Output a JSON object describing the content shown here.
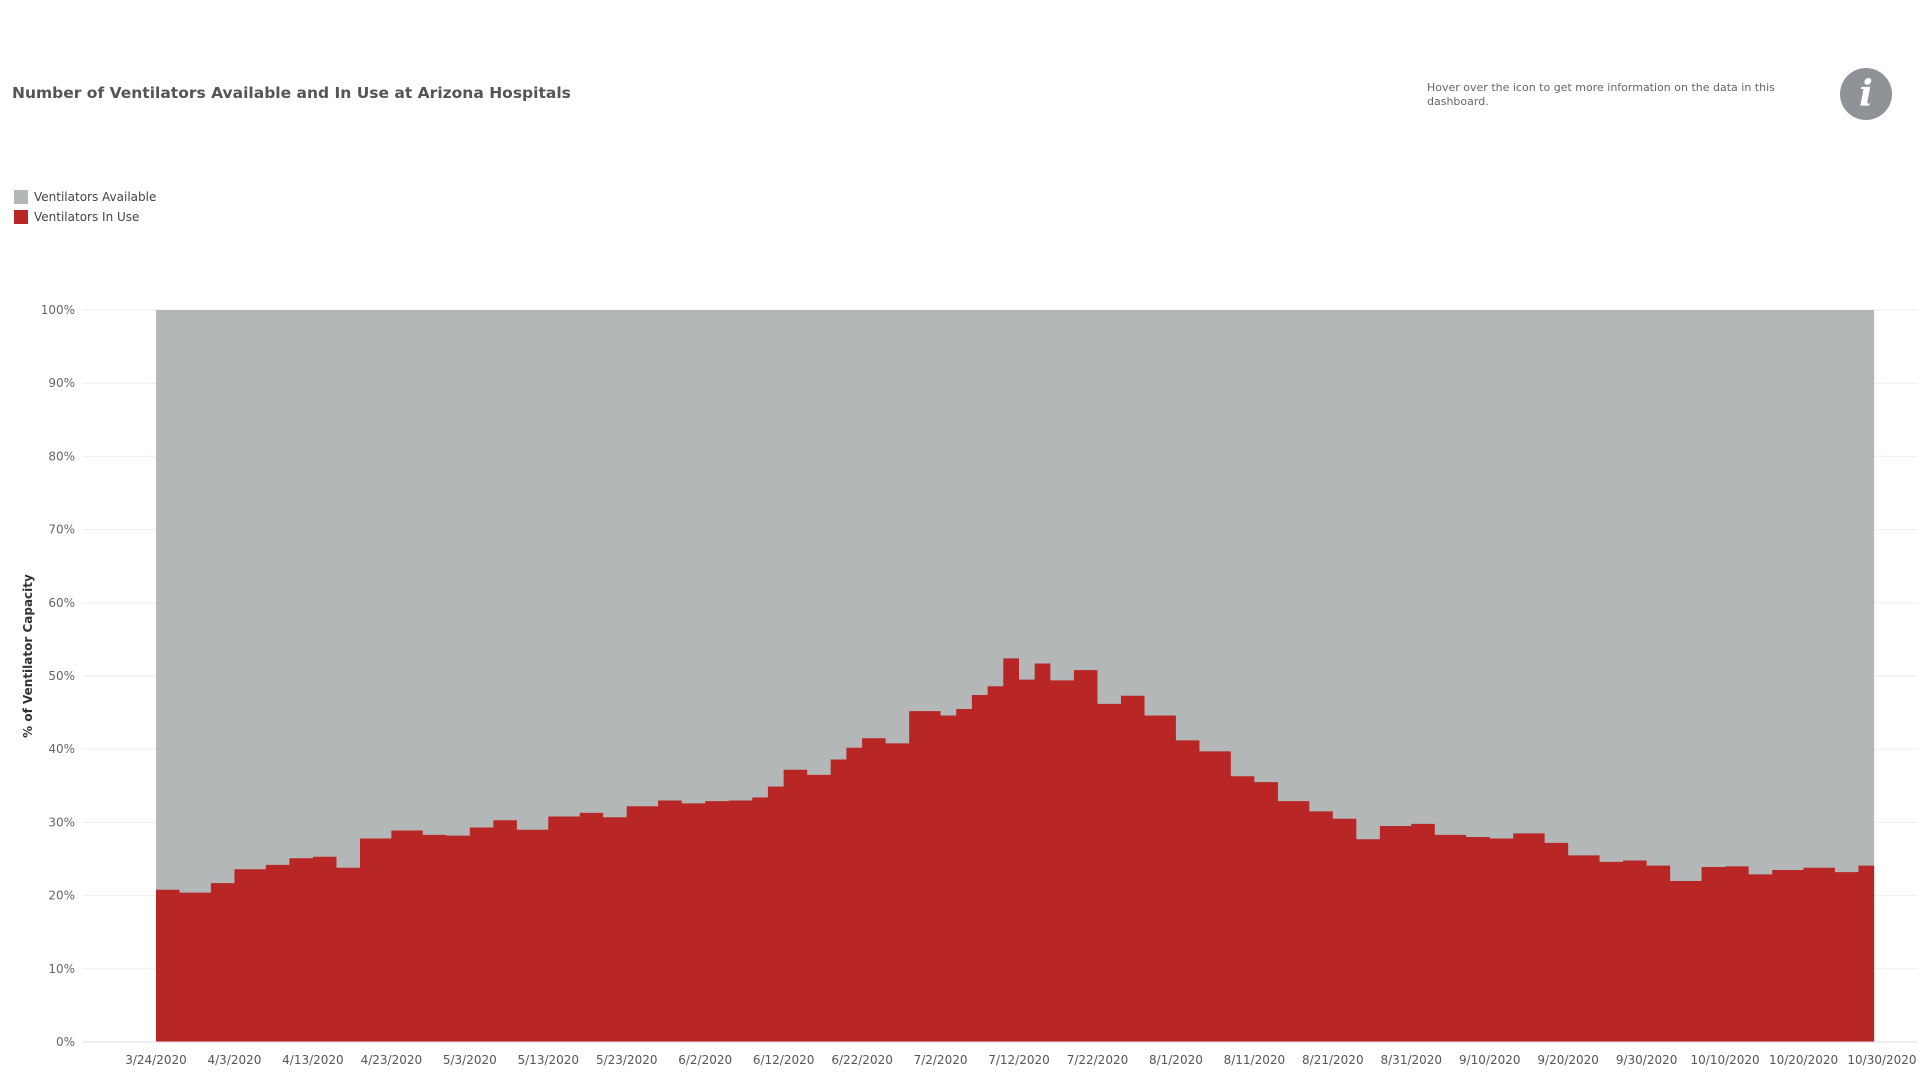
{
  "header": {
    "title": "Number of Ventilators Available and In Use at Arizona Hospitals",
    "hover_note": "Hover over the icon to get more information on the data in this dashboard.",
    "info_glyph": "i"
  },
  "colors": {
    "available": "#b3b7b8",
    "in_use": "#b92626",
    "grid": "#eeeeee"
  },
  "icons": {
    "info": "info-icon"
  },
  "chart_data": {
    "type": "area",
    "title": "Number of Ventilators Available and In Use at Arizona Hospitals",
    "ylabel": "% of Ventilator Capacity",
    "xlabel": "",
    "ylim": [
      0,
      100
    ],
    "yticks": [
      "0%",
      "10%",
      "20%",
      "30%",
      "40%",
      "50%",
      "60%",
      "70%",
      "80%",
      "90%",
      "100%"
    ],
    "xticks": [
      "3/24/2020",
      "4/3/2020",
      "4/13/2020",
      "4/23/2020",
      "5/3/2020",
      "5/13/2020",
      "5/23/2020",
      "6/2/2020",
      "6/12/2020",
      "6/22/2020",
      "7/2/2020",
      "7/12/2020",
      "7/22/2020",
      "8/1/2020",
      "8/11/2020",
      "8/21/2020",
      "8/31/2020",
      "9/10/2020",
      "9/20/2020",
      "9/30/2020",
      "10/10/2020",
      "10/20/2020",
      "10/30/2020"
    ],
    "x_start": "3/24/2020",
    "x_end": "10/30/2020",
    "grid": true,
    "legend_position": "top-left",
    "stacked": true,
    "series": [
      {
        "name": "Ventilators Available",
        "color": "#b3b7b8",
        "values": "remainder to 100%"
      },
      {
        "name": "Ventilators In Use",
        "color": "#b92626",
        "dates": [
          "3/24/2020",
          "3/27/2020",
          "3/31/2020",
          "4/3/2020",
          "4/7/2020",
          "4/10/2020",
          "4/13/2020",
          "4/16/2020",
          "4/19/2020",
          "4/23/2020",
          "4/27/2020",
          "4/30/2020",
          "5/3/2020",
          "5/6/2020",
          "5/9/2020",
          "5/13/2020",
          "5/17/2020",
          "5/20/2020",
          "5/23/2020",
          "5/27/2020",
          "5/30/2020",
          "6/2/2020",
          "6/5/2020",
          "6/8/2020",
          "6/10/2020",
          "6/12/2020",
          "6/15/2020",
          "6/18/2020",
          "6/20/2020",
          "6/22/2020",
          "6/25/2020",
          "6/28/2020",
          "7/2/2020",
          "7/4/2020",
          "7/6/2020",
          "7/8/2020",
          "7/10/2020",
          "7/12/2020",
          "7/14/2020",
          "7/16/2020",
          "7/19/2020",
          "7/22/2020",
          "7/25/2020",
          "7/28/2020",
          "8/1/2020",
          "8/4/2020",
          "8/8/2020",
          "8/11/2020",
          "8/14/2020",
          "8/18/2020",
          "8/21/2020",
          "8/24/2020",
          "8/27/2020",
          "8/31/2020",
          "9/3/2020",
          "9/7/2020",
          "9/10/2020",
          "9/13/2020",
          "9/17/2020",
          "9/20/2020",
          "9/24/2020",
          "9/27/2020",
          "9/30/2020",
          "10/3/2020",
          "10/7/2020",
          "10/10/2020",
          "10/13/2020",
          "10/16/2020",
          "10/20/2020",
          "10/24/2020",
          "10/27/2020"
        ],
        "values": [
          20.8,
          20.4,
          21.7,
          23.6,
          24.2,
          25.1,
          25.3,
          23.8,
          27.8,
          28.9,
          28.3,
          28.2,
          29.3,
          30.3,
          29.0,
          30.8,
          31.3,
          30.7,
          32.2,
          33.0,
          32.6,
          32.9,
          33.0,
          33.4,
          34.9,
          37.2,
          36.5,
          38.6,
          40.2,
          41.5,
          40.8,
          45.2,
          44.6,
          45.5,
          47.4,
          48.6,
          52.4,
          49.5,
          51.7,
          49.4,
          50.8,
          46.2,
          47.3,
          44.6,
          41.2,
          39.7,
          36.3,
          35.5,
          32.9,
          31.5,
          30.5,
          27.7,
          29.5,
          29.8,
          28.3,
          28.0,
          27.8,
          28.5,
          27.2,
          25.5,
          24.6,
          24.8,
          24.1,
          22.0,
          23.9,
          24.0,
          22.9,
          23.5,
          23.8,
          23.2,
          24.1
        ]
      }
    ]
  }
}
